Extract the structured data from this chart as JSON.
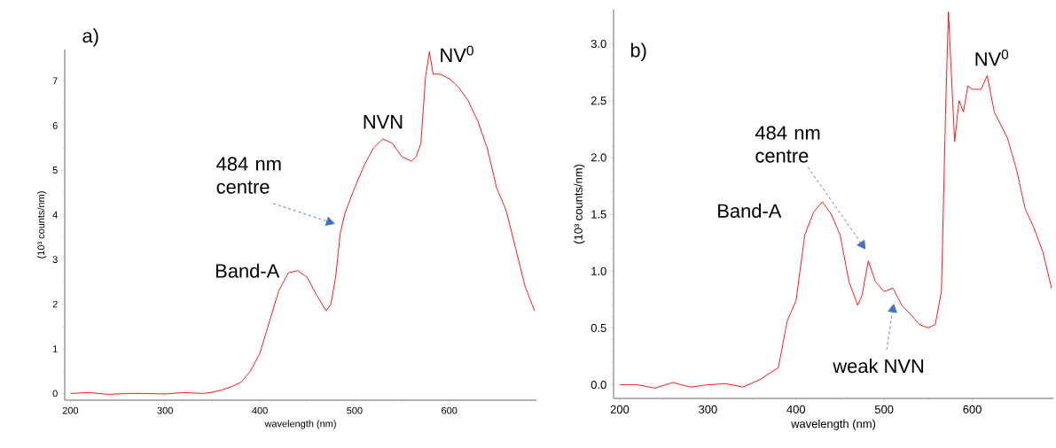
{
  "chart_data": [
    {
      "type": "line",
      "title": "a)",
      "xlabel": "wavelength  (nm)",
      "ylabel": "(10³ counts/nm)",
      "x": [
        200,
        220,
        240,
        260,
        280,
        300,
        320,
        340,
        350,
        360,
        370,
        380,
        390,
        400,
        410,
        420,
        430,
        440,
        450,
        460,
        470,
        475,
        480,
        485,
        490,
        500,
        510,
        520,
        530,
        540,
        550,
        560,
        565,
        570,
        575,
        579,
        583,
        590,
        600,
        610,
        620,
        630,
        640,
        650,
        660,
        670,
        680,
        690
      ],
      "series": [
        {
          "color": "#ff0000",
          "values": [
            0.0,
            0.02,
            -0.02,
            0.0,
            0.0,
            -0.01,
            0.02,
            0.0,
            0.03,
            0.08,
            0.15,
            0.25,
            0.5,
            0.9,
            1.6,
            2.3,
            2.7,
            2.75,
            2.6,
            2.2,
            1.85,
            2.0,
            2.6,
            3.6,
            4.05,
            4.6,
            5.1,
            5.5,
            5.7,
            5.6,
            5.3,
            5.2,
            5.3,
            5.6,
            7.1,
            7.65,
            7.15,
            7.15,
            7.05,
            6.85,
            6.55,
            6.1,
            5.5,
            4.6,
            4.1,
            3.25,
            2.4,
            1.85
          ]
        }
      ],
      "xlim": [
        194,
        692
      ],
      "ylim": [
        -0.15,
        7.7
      ],
      "xticks": [
        200,
        300,
        400,
        500,
        600
      ],
      "yticks": [
        0,
        1,
        2,
        3,
        4,
        5,
        6,
        7
      ],
      "annotations": [
        {
          "text": "Band-A",
          "x": 435,
          "y": 2.75
        },
        "484 nm centre",
        {
          "text": "NVN",
          "x": 530,
          "y": 5.75
        },
        {
          "text": "NV$^{0}$",
          "x": 579,
          "y": 7.65
        }
      ]
    },
    {
      "type": "line",
      "title": "b)",
      "xlabel": "wavelength  (nm)",
      "ylabel": "(10³ counts/nm)",
      "x": [
        200,
        220,
        240,
        260,
        280,
        300,
        320,
        340,
        360,
        370,
        380,
        390,
        400,
        410,
        420,
        430,
        440,
        450,
        460,
        470,
        475,
        482,
        490,
        500,
        510,
        520,
        530,
        540,
        550,
        558,
        565,
        570,
        573,
        576,
        580,
        585,
        590,
        595,
        600,
        610,
        617,
        625,
        640,
        650,
        660,
        670,
        680,
        690
      ],
      "series": [
        {
          "color": "#ff0000",
          "values": [
            0.0,
            0.0,
            -0.03,
            0.02,
            -0.02,
            0.0,
            0.01,
            -0.02,
            0.05,
            0.1,
            0.15,
            0.56,
            0.74,
            1.32,
            1.52,
            1.61,
            1.5,
            1.32,
            0.91,
            0.7,
            0.79,
            1.09,
            0.91,
            0.82,
            0.85,
            0.7,
            0.62,
            0.53,
            0.5,
            0.53,
            0.82,
            2.5,
            3.28,
            2.78,
            2.14,
            2.5,
            2.4,
            2.63,
            2.6,
            2.6,
            2.72,
            2.4,
            2.17,
            1.9,
            1.55,
            1.38,
            1.17,
            0.85
          ]
        }
      ],
      "xlim": [
        193,
        692
      ],
      "ylim": [
        -0.12,
        3.3
      ],
      "xticks": [
        200,
        300,
        400,
        500,
        600
      ],
      "yticks": [
        {
          "value": 0,
          "label": "0.0"
        },
        {
          "value": 0.5,
          "label": "0.5"
        },
        {
          "value": 1,
          "label": "1.0"
        },
        {
          "value": 1.5,
          "label": "1.5"
        },
        {
          "value": 2,
          "label": "2.0"
        },
        {
          "value": 2.5,
          "label": "2.5"
        },
        {
          "value": 3,
          "label": "3.0"
        }
      ],
      "annotations": [
        {
          "text": "Band-A",
          "x": 430,
          "y": 1.61
        },
        "484 nm centre",
        "weak NVN",
        {
          "text": "NV$^{0}$",
          "x": 617,
          "y": 2.72
        }
      ]
    }
  ]
}
